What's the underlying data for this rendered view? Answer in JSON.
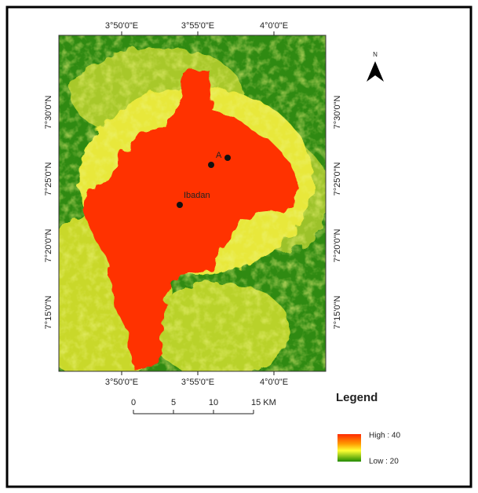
{
  "map": {
    "longitude_labels_top": [
      "3°50'0\"E",
      "3°55'0\"E",
      "4°0'0\"E"
    ],
    "longitude_labels_bottom": [
      "3°50'0\"E",
      "3°55'0\"E",
      "4°0'0\"E"
    ],
    "latitude_labels_left": [
      "7°30'0\"N",
      "7°25'0\"N",
      "7°20'0\"N",
      "7°15'0\"N"
    ],
    "latitude_labels_right": [
      "7°30'0\"N",
      "7°25'0\"N",
      "7°20'0\"N",
      "7°15'0\"N"
    ],
    "places": [
      {
        "label": "A"
      },
      {
        "label": "Ibadan"
      }
    ],
    "north": "N",
    "scale_labels": [
      "0",
      "5",
      "10",
      "15 KM"
    ],
    "legend": {
      "title": "Legend",
      "high": "High : 40",
      "low": "Low : 20"
    }
  }
}
